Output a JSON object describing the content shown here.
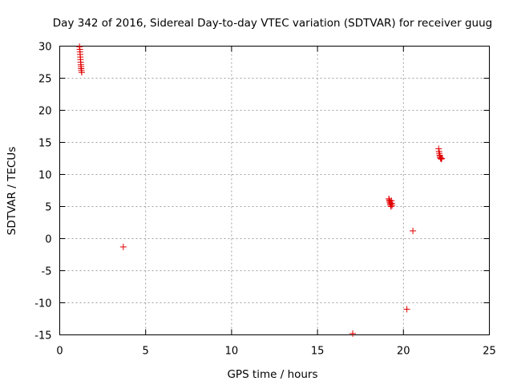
{
  "chart_data": {
    "type": "scatter",
    "title": "Day 342 of 2016, Sidereal Day-to-day VTEC variation (SDTVAR) for receiver guug",
    "xlabel": "GPS time / hours",
    "ylabel": "SDTVAR / TECUs",
    "xlim": [
      0,
      25
    ],
    "ylim": [
      -15,
      30
    ],
    "xticks": [
      0,
      5,
      10,
      15,
      20,
      25
    ],
    "yticks": [
      -15,
      -10,
      -5,
      0,
      5,
      10,
      15,
      20,
      25,
      30
    ],
    "grid": true,
    "marker": "+",
    "color": "#e00000",
    "series": [
      {
        "name": "SDTVAR",
        "points": [
          [
            1.15,
            29.9
          ],
          [
            1.17,
            29.5
          ],
          [
            1.18,
            29.1
          ],
          [
            1.19,
            28.7
          ],
          [
            1.2,
            28.3
          ],
          [
            1.21,
            27.9
          ],
          [
            1.22,
            27.5
          ],
          [
            1.23,
            27.1
          ],
          [
            1.24,
            26.8
          ],
          [
            1.25,
            26.5
          ],
          [
            1.26,
            26.2
          ],
          [
            1.28,
            25.9
          ],
          [
            3.7,
            -1.3
          ],
          [
            17.05,
            -14.8
          ],
          [
            19.15,
            6.2
          ],
          [
            19.18,
            6.0
          ],
          [
            19.2,
            5.8
          ],
          [
            19.22,
            5.6
          ],
          [
            19.24,
            5.4
          ],
          [
            19.26,
            5.2
          ],
          [
            19.28,
            5.0
          ],
          [
            19.3,
            5.9
          ],
          [
            19.32,
            5.5
          ],
          [
            19.34,
            5.2
          ],
          [
            20.2,
            -11.0
          ],
          [
            20.55,
            1.2
          ],
          [
            22.05,
            14.0
          ],
          [
            22.07,
            13.6
          ],
          [
            22.09,
            13.3
          ],
          [
            22.11,
            13.0
          ],
          [
            22.13,
            12.8
          ],
          [
            22.15,
            12.6
          ],
          [
            22.18,
            12.5
          ],
          [
            22.2,
            12.4
          ],
          [
            22.23,
            12.5
          ]
        ]
      }
    ]
  }
}
